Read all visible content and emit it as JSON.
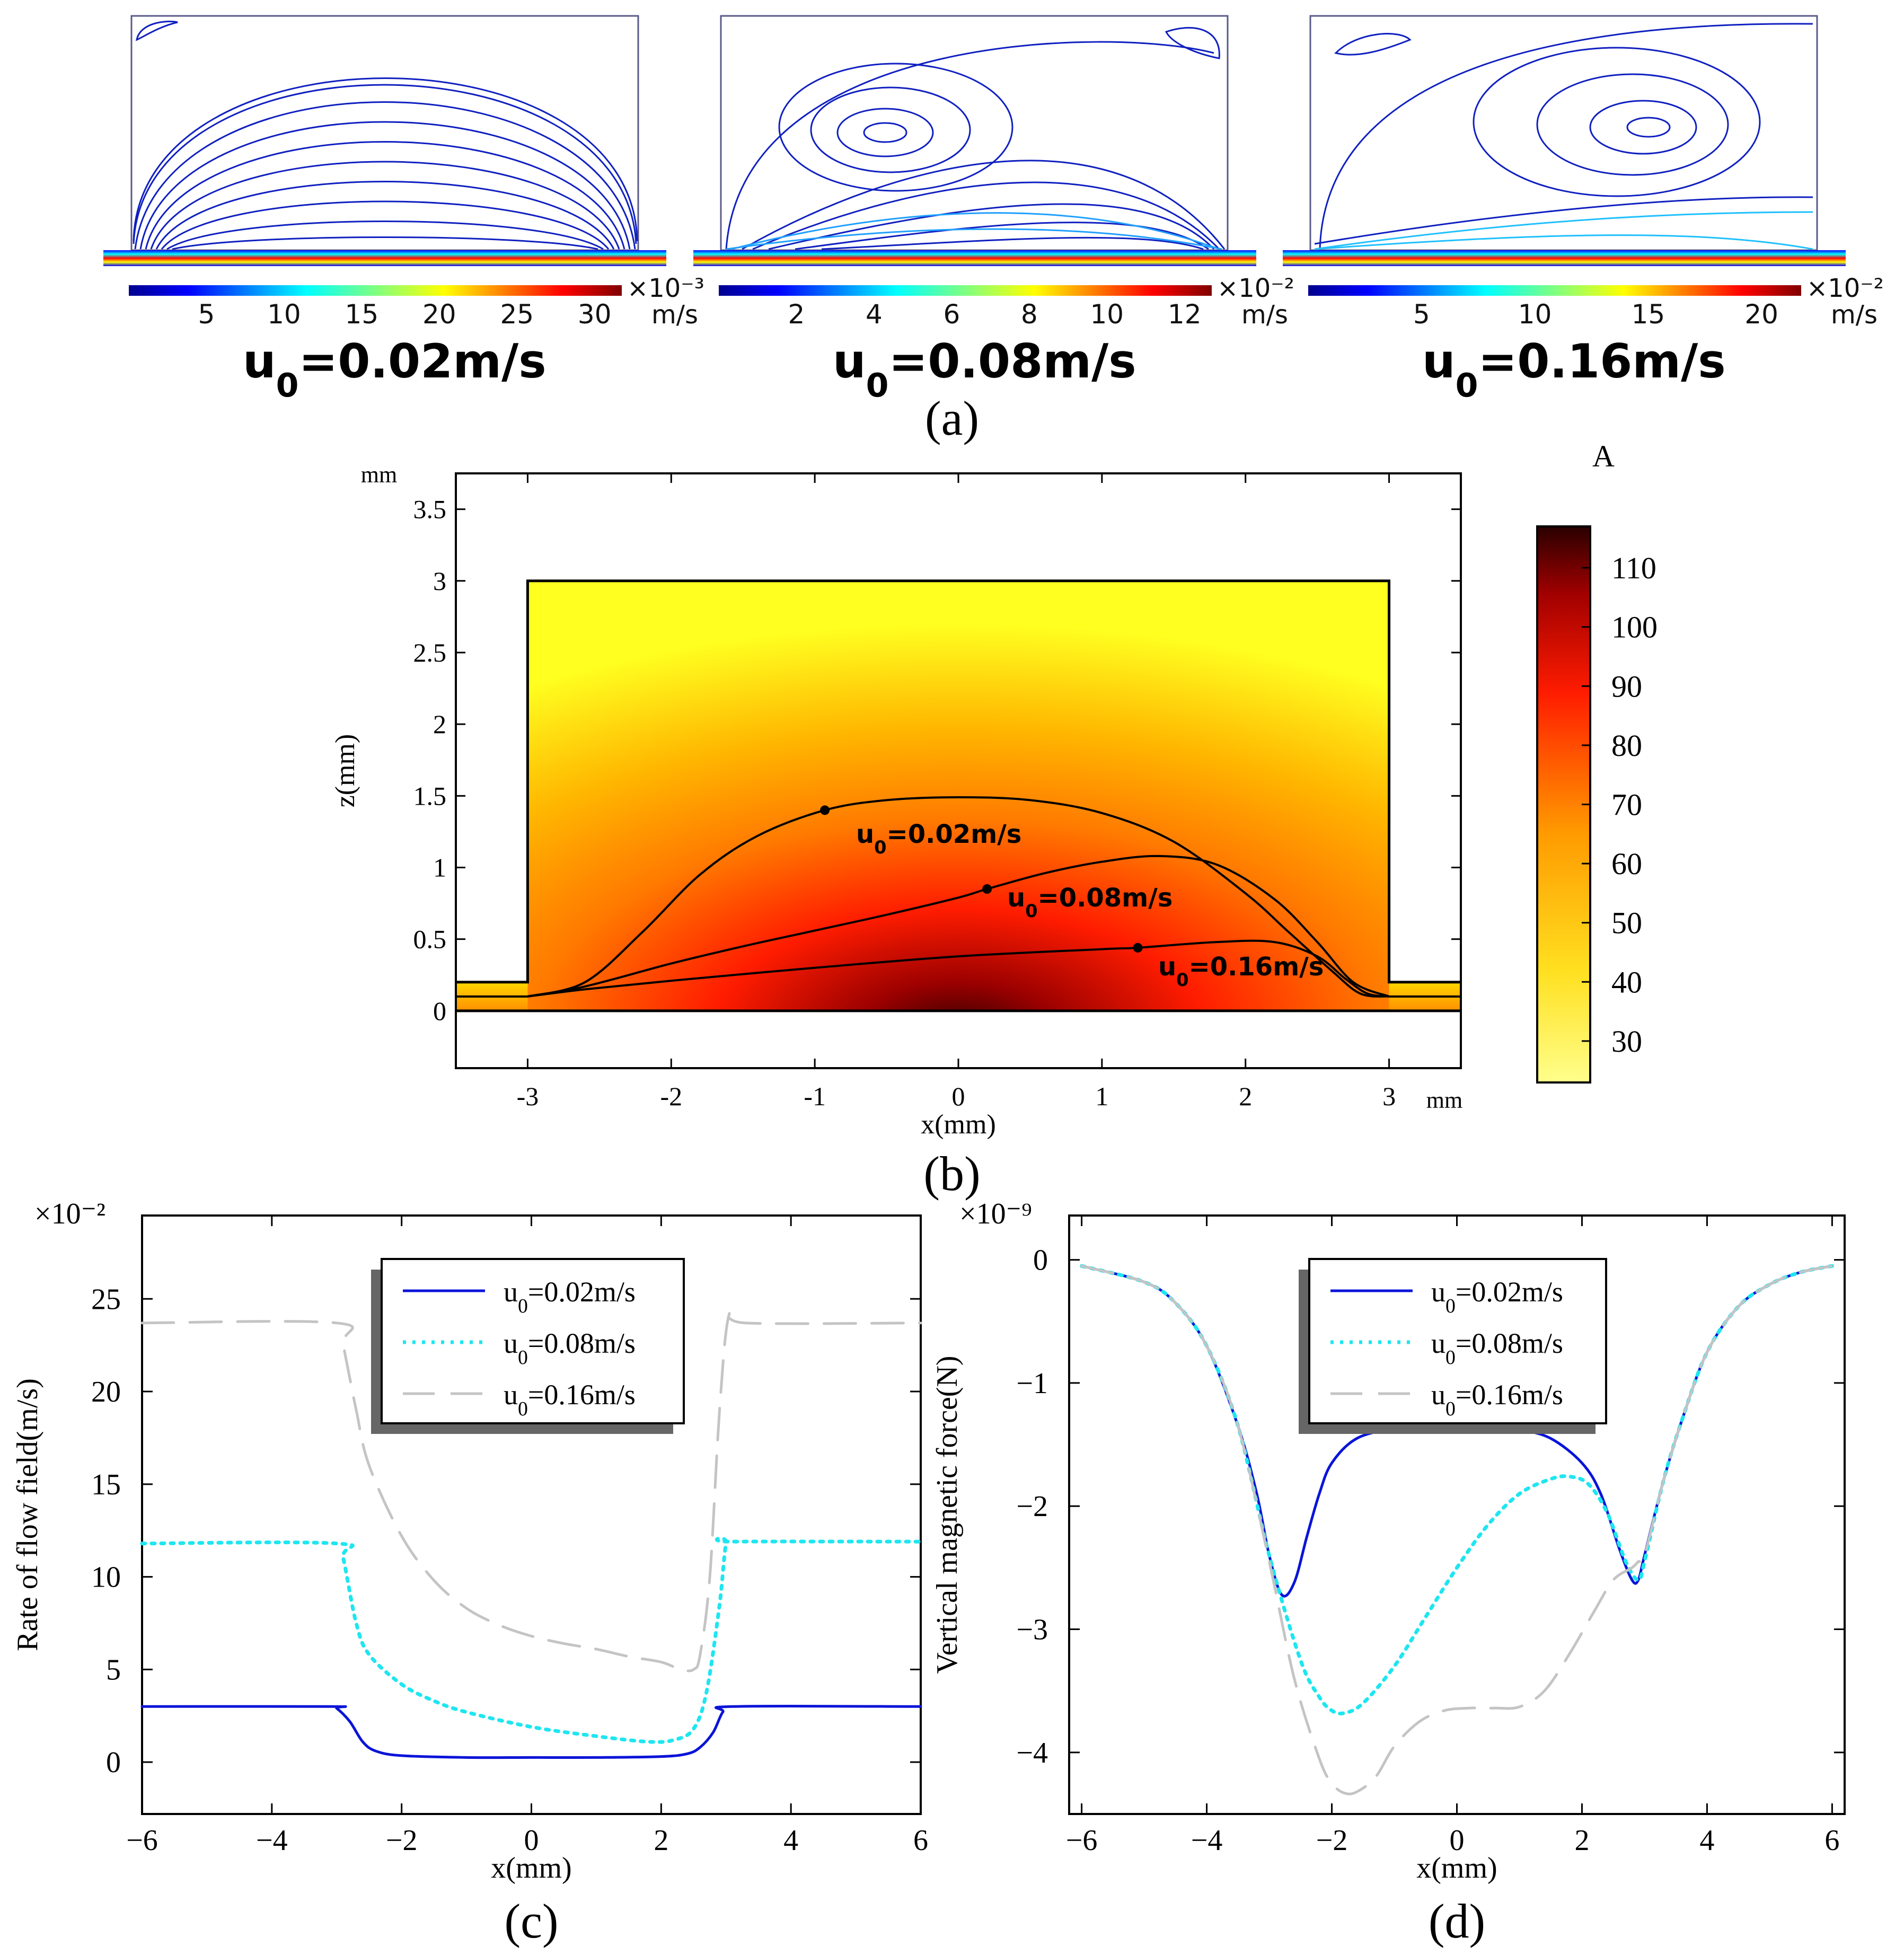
{
  "colors": {
    "c1": "#0a14d8",
    "c2": "#1ee6f0",
    "c3": "#c4c4c4",
    "axis": "#000000"
  },
  "panel_a": {
    "label": "(a)",
    "panels": [
      {
        "multiplier": "×10⁻³",
        "unit": "m/s",
        "ticks": [
          "5",
          "10",
          "15",
          "20",
          "25",
          "30"
        ],
        "caption_u": "u",
        "caption_sub": "0",
        "caption_rest": "=0.02m/s"
      },
      {
        "multiplier": "×10⁻²",
        "unit": "m/s",
        "ticks": [
          "2",
          "4",
          "6",
          "8",
          "10",
          "12"
        ],
        "caption_u": "u",
        "caption_sub": "0",
        "caption_rest": "=0.08m/s"
      },
      {
        "multiplier": "×10⁻²",
        "unit": "m/s",
        "ticks": [
          "5",
          "10",
          "15",
          "20"
        ],
        "caption_u": "u",
        "caption_sub": "0",
        "caption_rest": "=0.16m/s"
      }
    ]
  },
  "chart_data": [
    {
      "panel": "(b)",
      "type": "heatmap",
      "xlabel": "x(mm)",
      "ylabel": "z(mm)",
      "x_unit": "mm",
      "y_unit": "mm",
      "xlim": [
        -3.5,
        3.5
      ],
      "ylim": [
        -0.4,
        3.75
      ],
      "xticks": [
        "-3",
        "-2",
        "-1",
        "0",
        "1",
        "2",
        "3"
      ],
      "yticks": [
        "0",
        "0.5",
        "1",
        "1.5",
        "2",
        "2.5",
        "3",
        "3.5"
      ],
      "colorbar_title": "A",
      "colorbar_range": [
        23,
        117
      ],
      "colorbar_ticks": [
        "30",
        "40",
        "50",
        "60",
        "70",
        "80",
        "90",
        "100",
        "110"
      ],
      "series": [
        {
          "name": "u0=0.02m/s",
          "label_u": "u",
          "label_sub": "0",
          "label_rest": "=0.02m/s",
          "x": [
            -3.0,
            -2.6,
            -2.2,
            -1.8,
            -1.4,
            -0.93,
            -0.5,
            0.0,
            0.5,
            1.0,
            1.5,
            2.0,
            2.3,
            2.6,
            2.8,
            3.0
          ],
          "z": [
            0.1,
            0.2,
            0.55,
            0.95,
            1.22,
            1.4,
            1.47,
            1.49,
            1.47,
            1.38,
            1.18,
            0.82,
            0.55,
            0.28,
            0.12,
            0.1
          ],
          "marker": [
            -0.93,
            1.4
          ]
        },
        {
          "name": "u0=0.08m/s",
          "label_u": "u",
          "label_sub": "0",
          "label_rest": "=0.08m/s",
          "x": [
            -3.0,
            -2.6,
            -2.0,
            -1.5,
            -1.0,
            -0.5,
            0.0,
            0.2,
            0.6,
            1.0,
            1.4,
            1.8,
            2.2,
            2.5,
            2.75,
            3.0
          ],
          "z": [
            0.1,
            0.17,
            0.33,
            0.45,
            0.56,
            0.67,
            0.79,
            0.85,
            0.96,
            1.04,
            1.08,
            1.02,
            0.78,
            0.48,
            0.2,
            0.1
          ],
          "marker": [
            0.2,
            0.85
          ]
        },
        {
          "name": "u0=0.16m/s",
          "label_u": "u",
          "label_sub": "0",
          "label_rest": "=0.16m/s",
          "x": [
            -3.0,
            -2.6,
            -2.0,
            -1.0,
            0.0,
            1.0,
            1.25,
            1.8,
            2.2,
            2.5,
            2.7,
            2.85,
            3.0
          ],
          "z": [
            0.1,
            0.15,
            0.21,
            0.3,
            0.38,
            0.43,
            0.44,
            0.48,
            0.48,
            0.38,
            0.22,
            0.12,
            0.1
          ],
          "marker": [
            1.25,
            0.44
          ]
        }
      ]
    },
    {
      "panel": "(c)",
      "type": "line",
      "xlabel": "x(mm)",
      "ylabel": "Rate of flow field(m/s)",
      "multiplier": "×10⁻²",
      "xlim": [
        -6,
        6
      ],
      "ylim": [
        -2.8,
        29.5
      ],
      "xticks": [
        "−6",
        "−4",
        "−2",
        "0",
        "2",
        "4",
        "6"
      ],
      "yticks": [
        "0",
        "5",
        "10",
        "15",
        "20",
        "25"
      ],
      "series": [
        {
          "name": "u0=0.02m/s",
          "label_u": "u",
          "label_sub": "0",
          "label_rest": "=0.02m/s",
          "x": [
            -6,
            -3.1,
            -3.0,
            -2.8,
            -2.6,
            -2.4,
            -2.0,
            -1.0,
            0,
            1.0,
            2.0,
            2.4,
            2.6,
            2.8,
            2.95,
            3.1,
            6
          ],
          "y": [
            3.0,
            3.0,
            2.9,
            2.2,
            1.1,
            0.6,
            0.35,
            0.25,
            0.25,
            0.25,
            0.3,
            0.45,
            0.8,
            1.6,
            2.7,
            3.0,
            3.0
          ]
        },
        {
          "name": "u0=0.08m/s",
          "label_u": "u",
          "label_sub": "0",
          "label_rest": "=0.08m/s",
          "x": [
            -6,
            -3.0,
            -2.9,
            -2.7,
            -2.5,
            -2.0,
            -1.5,
            -1.0,
            0,
            1.0,
            1.8,
            2.2,
            2.5,
            2.7,
            2.9,
            3.0,
            3.1,
            6
          ],
          "y": [
            11.8,
            11.8,
            11.0,
            7.5,
            5.8,
            4.2,
            3.3,
            2.7,
            1.9,
            1.4,
            1.1,
            1.2,
            1.8,
            3.8,
            8.5,
            11.8,
            11.9,
            11.9
          ]
        },
        {
          "name": "u0=0.16m/s",
          "label_u": "u",
          "label_sub": "0",
          "label_rest": "=0.16m/s",
          "x": [
            -6,
            -3.0,
            -2.9,
            -2.7,
            -2.5,
            -2.0,
            -1.5,
            -1.0,
            -0.5,
            0,
            0.5,
            1.0,
            1.5,
            2.0,
            2.3,
            2.5,
            2.6,
            2.75,
            2.9,
            3.05,
            3.3,
            6
          ],
          "y": [
            23.7,
            23.7,
            22.5,
            19.0,
            16.0,
            12.2,
            9.8,
            8.3,
            7.4,
            6.8,
            6.4,
            6.1,
            5.7,
            5.4,
            5.0,
            5.0,
            5.8,
            10.0,
            19.0,
            24.2,
            23.7,
            23.7
          ]
        }
      ]
    },
    {
      "panel": "(d)",
      "type": "line",
      "xlabel": "x(mm)",
      "ylabel": "Vertical magnetic force(N)",
      "multiplier": "×10⁻⁹",
      "xlim": [
        -6.2,
        6.2
      ],
      "ylim": [
        -4.5,
        0.36
      ],
      "xticks": [
        "−6",
        "−4",
        "−2",
        "0",
        "2",
        "4",
        "6"
      ],
      "yticks": [
        "−4",
        "−3",
        "−2",
        "−1",
        "0"
      ],
      "series": [
        {
          "name": "u0=0.02m/s",
          "label_u": "u",
          "label_sub": "0",
          "label_rest": "=0.02m/s",
          "x": [
            -6,
            -5,
            -4.5,
            -4,
            -3.5,
            -3.2,
            -3.0,
            -2.8,
            -2.6,
            -2.4,
            -2.2,
            -2.0,
            -1.6,
            -1.0,
            -0.5,
            0,
            0.5,
            1.0,
            1.5,
            2.0,
            2.3,
            2.6,
            2.8,
            2.9,
            3.0,
            3.3,
            3.6,
            4.0,
            4.5,
            5.0,
            5.5,
            6.0
          ],
          "y": [
            -0.05,
            -0.18,
            -0.35,
            -0.7,
            -1.35,
            -1.9,
            -2.4,
            -2.72,
            -2.62,
            -2.25,
            -1.9,
            -1.65,
            -1.45,
            -1.37,
            -1.35,
            -1.35,
            -1.36,
            -1.38,
            -1.45,
            -1.65,
            -1.9,
            -2.35,
            -2.6,
            -2.6,
            -2.4,
            -1.8,
            -1.3,
            -0.75,
            -0.38,
            -0.2,
            -0.1,
            -0.05
          ]
        },
        {
          "name": "u0=0.08m/s",
          "label_u": "u",
          "label_sub": "0",
          "label_rest": "=0.08m/s",
          "x": [
            -6,
            -5,
            -4.5,
            -4,
            -3.5,
            -3.0,
            -2.5,
            -2.2,
            -2.0,
            -1.8,
            -1.5,
            -1.0,
            -0.5,
            0,
            0.5,
            1.0,
            1.5,
            1.8,
            2.1,
            2.4,
            2.7,
            2.9,
            3.0,
            3.3,
            3.6,
            4.0,
            4.5,
            5.0,
            5.5,
            6.0
          ],
          "y": [
            -0.05,
            -0.18,
            -0.35,
            -0.7,
            -1.35,
            -2.4,
            -3.25,
            -3.55,
            -3.66,
            -3.68,
            -3.6,
            -3.3,
            -2.9,
            -2.5,
            -2.15,
            -1.9,
            -1.78,
            -1.76,
            -1.82,
            -2.05,
            -2.45,
            -2.6,
            -2.45,
            -1.8,
            -1.3,
            -0.75,
            -0.38,
            -0.2,
            -0.1,
            -0.05
          ]
        },
        {
          "name": "u0=0.16m/s",
          "label_u": "u",
          "label_sub": "0",
          "label_rest": "=0.16m/s",
          "x": [
            -6,
            -5,
            -4.5,
            -4,
            -3.5,
            -3.0,
            -2.6,
            -2.2,
            -2.0,
            -1.8,
            -1.6,
            -1.3,
            -1.0,
            -0.6,
            -0.2,
            0.2,
            0.6,
            1.0,
            1.4,
            1.8,
            2.2,
            2.5,
            2.8,
            2.9,
            3.0,
            3.3,
            3.6,
            4.0,
            4.5,
            5.0,
            5.5,
            6.0
          ],
          "y": [
            -0.05,
            -0.18,
            -0.35,
            -0.7,
            -1.35,
            -2.45,
            -3.4,
            -4.05,
            -4.25,
            -4.33,
            -4.32,
            -4.2,
            -3.95,
            -3.75,
            -3.66,
            -3.64,
            -3.64,
            -3.63,
            -3.5,
            -3.2,
            -2.85,
            -2.6,
            -2.5,
            -2.45,
            -2.4,
            -1.8,
            -1.3,
            -0.75,
            -0.38,
            -0.2,
            -0.1,
            -0.05
          ]
        }
      ]
    }
  ],
  "labels": {
    "b": "(b)",
    "c": "(c)",
    "d": "(d)"
  }
}
